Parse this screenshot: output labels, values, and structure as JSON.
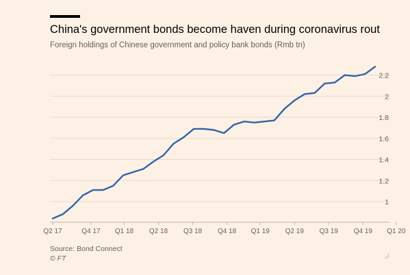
{
  "header": {
    "title": "China's government bonds become haven during coronavirus rout",
    "subtitle": "Foreign holdings of Chinese government and policy bank bonds (Rmb tn)"
  },
  "footer": {
    "source": "Source: Bond Connect",
    "copyright": "© FT"
  },
  "colors": {
    "line": "#3164a6",
    "grid": "#e6d9ce",
    "tick_text": "#66605c",
    "background": "#fdf1e6"
  },
  "chart_data": {
    "type": "line",
    "title": "China's government bonds become haven during coronavirus rout",
    "subtitle": "Foreign holdings of Chinese government and policy bank bonds (Rmb tn)",
    "xlabel": "",
    "ylabel": "",
    "grid": true,
    "y_axis_side": "right",
    "ylim": [
      0.85,
      2.3
    ],
    "yticks": [
      1,
      1.2,
      1.4,
      1.6,
      1.8,
      2,
      2.2
    ],
    "ytick_labels": [
      "1",
      "1.2",
      "1.4",
      "1.6",
      "1.8",
      "2",
      "2.2"
    ],
    "xtick_labels": [
      "Q2 17",
      "Q4 17",
      "Q1 18",
      "Q2 18",
      "Q3 18",
      "Q4 18",
      "Q1 19",
      "Q2 19",
      "Q3 19",
      "Q4 19",
      "Q1 20"
    ],
    "xtick_positions": [
      1,
      4.8,
      8.1,
      11.5,
      14.9,
      18.3,
      21.6,
      25,
      28.4,
      31.8,
      35.1
    ],
    "series": [
      {
        "values": [
          0.84,
          0.88,
          0.96,
          1.06,
          1.11,
          1.11,
          1.15,
          1.25,
          1.28,
          1.31,
          1.38,
          1.44,
          1.55,
          1.61,
          1.69,
          1.69,
          1.68,
          1.65,
          1.73,
          1.76,
          1.75,
          1.76,
          1.77,
          1.88,
          1.96,
          2.02,
          2.03,
          2.12,
          2.13,
          2.2,
          2.19,
          2.21,
          2.28
        ]
      }
    ]
  }
}
